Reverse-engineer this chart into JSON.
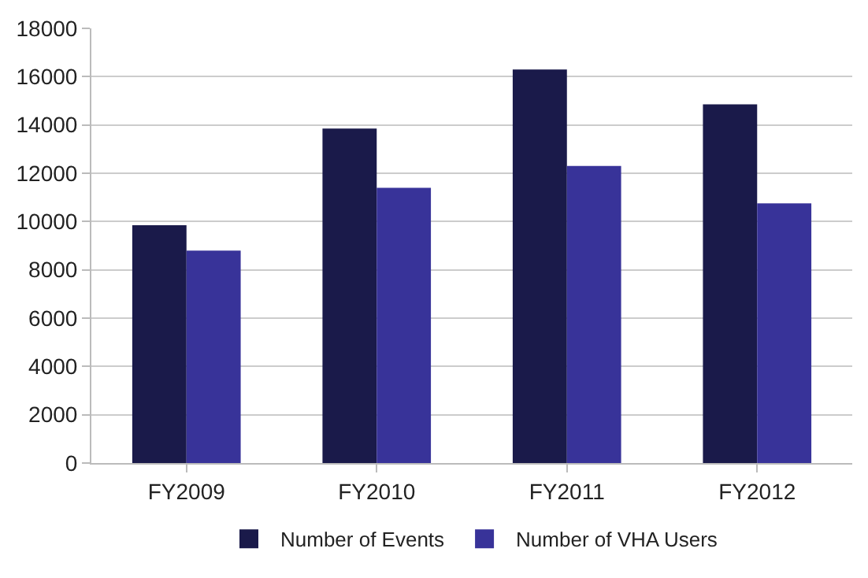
{
  "chart_data": {
    "type": "bar",
    "categories": [
      "FY2009",
      "FY2010",
      "FY2011",
      "FY2012"
    ],
    "series": [
      {
        "name": "Number of Events",
        "color": "#1a1a4a",
        "values": [
          9850,
          13850,
          16300,
          14850
        ]
      },
      {
        "name": "Number of VHA Users",
        "color": "#383399",
        "values": [
          8800,
          11400,
          12300,
          10750
        ]
      }
    ],
    "ylim": [
      0,
      18000
    ],
    "yticks": [
      0,
      2000,
      4000,
      6000,
      8000,
      10000,
      12000,
      14000,
      16000,
      18000
    ],
    "grid": "y",
    "legend": "bottom"
  }
}
